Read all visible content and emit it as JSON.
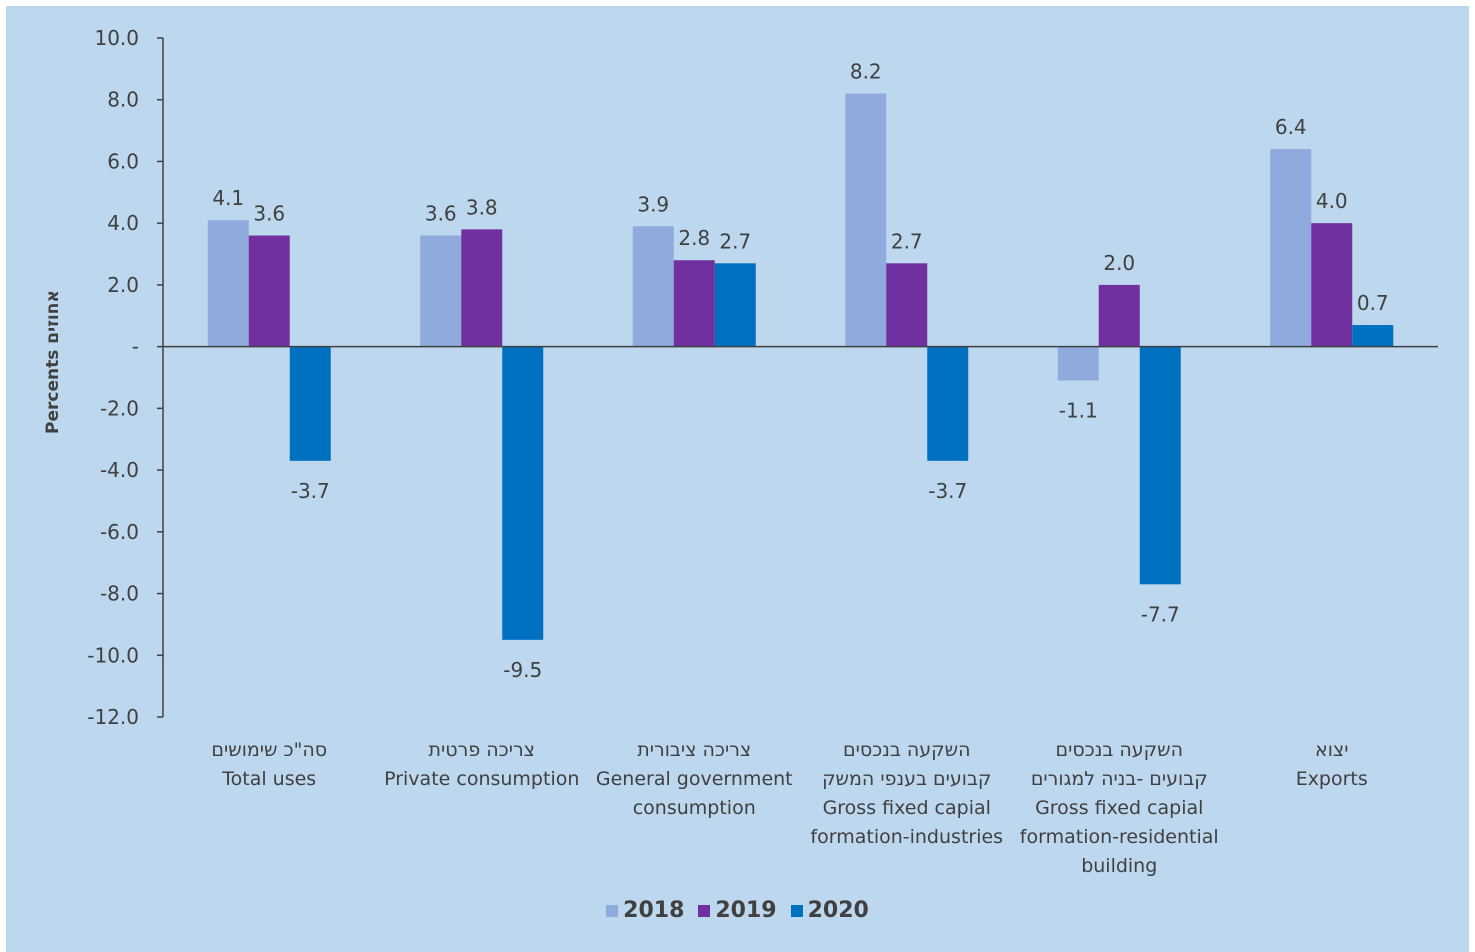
{
  "chart_data": {
    "type": "bar",
    "ylabel": "Percents אחוזים",
    "ylim": [
      -12,
      10
    ],
    "yticks": [
      {
        "value": 10,
        "label": "10.0"
      },
      {
        "value": 8,
        "label": "8.0"
      },
      {
        "value": 6,
        "label": "6.0"
      },
      {
        "value": 4,
        "label": "4.0"
      },
      {
        "value": 2,
        "label": "2.0"
      },
      {
        "value": 0,
        "label": "-"
      },
      {
        "value": -2,
        "label": "-2.0"
      },
      {
        "value": -4,
        "label": "-4.0"
      },
      {
        "value": -6,
        "label": "-6.0"
      },
      {
        "value": -8,
        "label": "-8.0"
      },
      {
        "value": -10,
        "label": "-10.0"
      },
      {
        "value": -12,
        "label": "-12.0"
      }
    ],
    "categories": [
      {
        "lines": [
          "סה\"כ שימושים",
          "Total uses"
        ]
      },
      {
        "lines": [
          "צריכה פרטית",
          "Private consumption"
        ]
      },
      {
        "lines": [
          "צריכה ציבורית",
          "General government",
          "consumption"
        ]
      },
      {
        "lines": [
          "השקעה בנכסים",
          "קבועים בענפי המשק",
          "Gross fixed capial",
          "formation-industries"
        ]
      },
      {
        "lines": [
          "השקעה בנכסים",
          "קבועים -בניה למגורים",
          "Gross fixed capial",
          "formation-residential",
          "building"
        ]
      },
      {
        "lines": [
          "יצוא",
          "Exports"
        ]
      }
    ],
    "series": [
      {
        "name": "2018",
        "color": "#8faadc",
        "values": [
          4.1,
          3.6,
          3.9,
          8.2,
          -1.1,
          6.4
        ]
      },
      {
        "name": "2019",
        "color": "#7030a0",
        "values": [
          3.6,
          3.8,
          2.8,
          2.7,
          2.0,
          4.0
        ]
      },
      {
        "name": "2020",
        "color": "#0070c0",
        "values": [
          -3.7,
          -9.5,
          2.7,
          -3.7,
          -7.7,
          0.7
        ]
      }
    ],
    "grid": false,
    "legend": "bottom",
    "background": "#bdd7ee"
  }
}
